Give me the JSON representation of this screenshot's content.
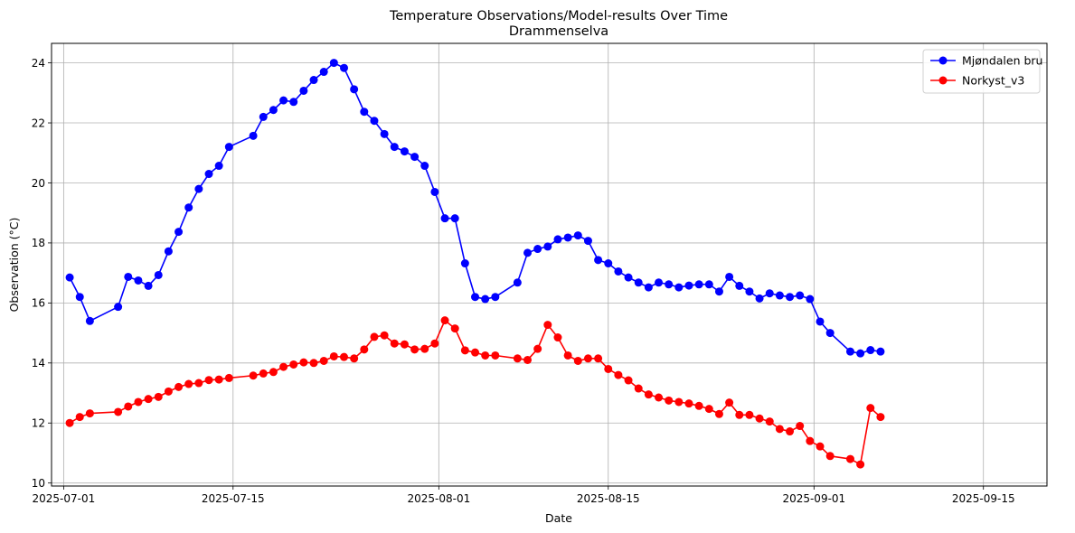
{
  "chart_data": {
    "type": "line",
    "title": "Temperature Observations/Model-results Over Time",
    "subtitle": "Drammenselva",
    "xlabel": "Date",
    "ylabel": "Observation (°C)",
    "x_tick_labels": [
      "2025-07-01",
      "2025-07-15",
      "2025-08-01",
      "2025-08-15",
      "2025-09-01",
      "2025-09-15"
    ],
    "y_tick_labels": [
      "10",
      "12",
      "14",
      "16",
      "18",
      "20",
      "22",
      "24"
    ],
    "ylim": [
      9.9,
      24.65
    ],
    "xlim": [
      "2025-06-30T00:00",
      "2025-09-20T06:00"
    ],
    "grid": true,
    "legend_position": "top-right",
    "series": [
      {
        "name": "Mjøndalen bru",
        "color": "#0000ff",
        "points": [
          [
            "2025-07-01T12:00",
            16.85
          ],
          [
            "2025-07-02T08:00",
            16.2
          ],
          [
            "2025-07-03T04:00",
            15.4
          ],
          [
            "2025-07-05T12:00",
            15.87
          ],
          [
            "2025-07-06T08:00",
            16.87
          ],
          [
            "2025-07-07T04:00",
            16.75
          ],
          [
            "2025-07-08T00:00",
            16.57
          ],
          [
            "2025-07-08T20:00",
            16.93
          ],
          [
            "2025-07-09T16:00",
            17.72
          ],
          [
            "2025-07-10T12:00",
            18.37
          ],
          [
            "2025-07-11T08:00",
            19.18
          ],
          [
            "2025-07-12T04:00",
            19.8
          ],
          [
            "2025-07-13T00:00",
            20.3
          ],
          [
            "2025-07-13T20:00",
            20.57
          ],
          [
            "2025-07-14T16:00",
            21.2
          ],
          [
            "2025-07-16T16:00",
            21.57
          ],
          [
            "2025-07-17T12:00",
            22.2
          ],
          [
            "2025-07-18T08:00",
            22.43
          ],
          [
            "2025-07-19T04:00",
            22.75
          ],
          [
            "2025-07-20T00:00",
            22.7
          ],
          [
            "2025-07-20T20:00",
            23.07
          ],
          [
            "2025-07-21T16:00",
            23.43
          ],
          [
            "2025-07-22T12:00",
            23.7
          ],
          [
            "2025-07-23T08:00",
            24.0
          ],
          [
            "2025-07-24T04:00",
            23.83
          ],
          [
            "2025-07-25T00:00",
            23.12
          ],
          [
            "2025-07-25T20:00",
            22.37
          ],
          [
            "2025-07-26T16:00",
            22.07
          ],
          [
            "2025-07-27T12:00",
            21.63
          ],
          [
            "2025-07-28T08:00",
            21.2
          ],
          [
            "2025-07-29T04:00",
            21.05
          ],
          [
            "2025-07-30T00:00",
            20.87
          ],
          [
            "2025-07-30T20:00",
            20.57
          ],
          [
            "2025-07-31T16:00",
            19.7
          ],
          [
            "2025-08-01T12:00",
            18.82
          ],
          [
            "2025-08-02T08:00",
            18.82
          ],
          [
            "2025-08-03T04:00",
            17.32
          ],
          [
            "2025-08-04T00:00",
            16.2
          ],
          [
            "2025-08-04T20:00",
            16.13
          ],
          [
            "2025-08-05T16:00",
            16.2
          ],
          [
            "2025-08-07T12:00",
            16.68
          ],
          [
            "2025-08-08T08:00",
            17.67
          ],
          [
            "2025-08-09T04:00",
            17.8
          ],
          [
            "2025-08-10T00:00",
            17.88
          ],
          [
            "2025-08-10T20:00",
            18.12
          ],
          [
            "2025-08-11T16:00",
            18.18
          ],
          [
            "2025-08-12T12:00",
            18.25
          ],
          [
            "2025-08-13T08:00",
            18.07
          ],
          [
            "2025-08-14T04:00",
            17.43
          ],
          [
            "2025-08-15T00:00",
            17.32
          ],
          [
            "2025-08-15T20:00",
            17.05
          ],
          [
            "2025-08-16T16:00",
            16.85
          ],
          [
            "2025-08-17T12:00",
            16.68
          ],
          [
            "2025-08-18T08:00",
            16.52
          ],
          [
            "2025-08-19T04:00",
            16.68
          ],
          [
            "2025-08-20T00:00",
            16.62
          ],
          [
            "2025-08-20T20:00",
            16.52
          ],
          [
            "2025-08-21T16:00",
            16.58
          ],
          [
            "2025-08-22T12:00",
            16.62
          ],
          [
            "2025-08-23T08:00",
            16.62
          ],
          [
            "2025-08-24T04:00",
            16.38
          ],
          [
            "2025-08-25T00:00",
            16.87
          ],
          [
            "2025-08-25T20:00",
            16.57
          ],
          [
            "2025-08-26T16:00",
            16.38
          ],
          [
            "2025-08-27T12:00",
            16.15
          ],
          [
            "2025-08-28T08:00",
            16.32
          ],
          [
            "2025-08-29T04:00",
            16.25
          ],
          [
            "2025-08-30T00:00",
            16.2
          ],
          [
            "2025-08-30T20:00",
            16.25
          ],
          [
            "2025-08-31T16:00",
            16.13
          ],
          [
            "2025-09-01T12:00",
            15.38
          ],
          [
            "2025-09-02T08:00",
            15.0
          ],
          [
            "2025-09-04T00:00",
            14.38
          ],
          [
            "2025-09-04T20:00",
            14.32
          ],
          [
            "2025-09-05T16:00",
            14.43
          ],
          [
            "2025-09-06T12:00",
            14.38
          ]
        ]
      },
      {
        "name": "Norkyst_v3",
        "color": "#ff0000",
        "points": [
          [
            "2025-07-01T12:00",
            12.0
          ],
          [
            "2025-07-02T08:00",
            12.2
          ],
          [
            "2025-07-03T04:00",
            12.32
          ],
          [
            "2025-07-05T12:00",
            12.37
          ],
          [
            "2025-07-06T08:00",
            12.55
          ],
          [
            "2025-07-07T04:00",
            12.7
          ],
          [
            "2025-07-08T00:00",
            12.8
          ],
          [
            "2025-07-08T20:00",
            12.87
          ],
          [
            "2025-07-09T16:00",
            13.05
          ],
          [
            "2025-07-10T12:00",
            13.2
          ],
          [
            "2025-07-11T08:00",
            13.3
          ],
          [
            "2025-07-12T04:00",
            13.33
          ],
          [
            "2025-07-13T00:00",
            13.43
          ],
          [
            "2025-07-13T20:00",
            13.45
          ],
          [
            "2025-07-14T16:00",
            13.5
          ],
          [
            "2025-07-16T16:00",
            13.58
          ],
          [
            "2025-07-17T12:00",
            13.65
          ],
          [
            "2025-07-18T08:00",
            13.7
          ],
          [
            "2025-07-19T04:00",
            13.87
          ],
          [
            "2025-07-20T00:00",
            13.95
          ],
          [
            "2025-07-20T20:00",
            14.02
          ],
          [
            "2025-07-21T16:00",
            14.0
          ],
          [
            "2025-07-22T12:00",
            14.07
          ],
          [
            "2025-07-23T08:00",
            14.22
          ],
          [
            "2025-07-24T04:00",
            14.2
          ],
          [
            "2025-07-25T00:00",
            14.15
          ],
          [
            "2025-07-25T20:00",
            14.45
          ],
          [
            "2025-07-26T16:00",
            14.87
          ],
          [
            "2025-07-27T12:00",
            14.92
          ],
          [
            "2025-07-28T08:00",
            14.65
          ],
          [
            "2025-07-29T04:00",
            14.62
          ],
          [
            "2025-07-30T00:00",
            14.45
          ],
          [
            "2025-07-30T20:00",
            14.47
          ],
          [
            "2025-07-31T16:00",
            14.65
          ],
          [
            "2025-08-01T12:00",
            15.42
          ],
          [
            "2025-08-02T08:00",
            15.15
          ],
          [
            "2025-08-03T04:00",
            14.42
          ],
          [
            "2025-08-04T00:00",
            14.35
          ],
          [
            "2025-08-04T20:00",
            14.25
          ],
          [
            "2025-08-05T16:00",
            14.25
          ],
          [
            "2025-08-07T12:00",
            14.15
          ],
          [
            "2025-08-08T08:00",
            14.1
          ],
          [
            "2025-08-09T04:00",
            14.47
          ],
          [
            "2025-08-10T00:00",
            15.27
          ],
          [
            "2025-08-10T20:00",
            14.85
          ],
          [
            "2025-08-11T16:00",
            14.25
          ],
          [
            "2025-08-12T12:00",
            14.07
          ],
          [
            "2025-08-13T08:00",
            14.15
          ],
          [
            "2025-08-14T04:00",
            14.15
          ],
          [
            "2025-08-15T00:00",
            13.8
          ],
          [
            "2025-08-15T20:00",
            13.6
          ],
          [
            "2025-08-16T16:00",
            13.42
          ],
          [
            "2025-08-17T12:00",
            13.15
          ],
          [
            "2025-08-18T08:00",
            12.95
          ],
          [
            "2025-08-19T04:00",
            12.85
          ],
          [
            "2025-08-20T00:00",
            12.75
          ],
          [
            "2025-08-20T20:00",
            12.7
          ],
          [
            "2025-08-21T16:00",
            12.65
          ],
          [
            "2025-08-22T12:00",
            12.57
          ],
          [
            "2025-08-23T08:00",
            12.47
          ],
          [
            "2025-08-24T04:00",
            12.3
          ],
          [
            "2025-08-25T00:00",
            12.68
          ],
          [
            "2025-08-25T20:00",
            12.27
          ],
          [
            "2025-08-26T16:00",
            12.27
          ],
          [
            "2025-08-27T12:00",
            12.15
          ],
          [
            "2025-08-28T08:00",
            12.05
          ],
          [
            "2025-08-29T04:00",
            11.8
          ],
          [
            "2025-08-30T00:00",
            11.72
          ],
          [
            "2025-08-30T20:00",
            11.9
          ],
          [
            "2025-08-31T16:00",
            11.4
          ],
          [
            "2025-09-01T12:00",
            11.22
          ],
          [
            "2025-09-02T08:00",
            10.9
          ],
          [
            "2025-09-04T00:00",
            10.8
          ],
          [
            "2025-09-04T20:00",
            10.62
          ],
          [
            "2025-09-05T16:00",
            12.5
          ],
          [
            "2025-09-06T12:00",
            12.2
          ]
        ]
      }
    ]
  }
}
